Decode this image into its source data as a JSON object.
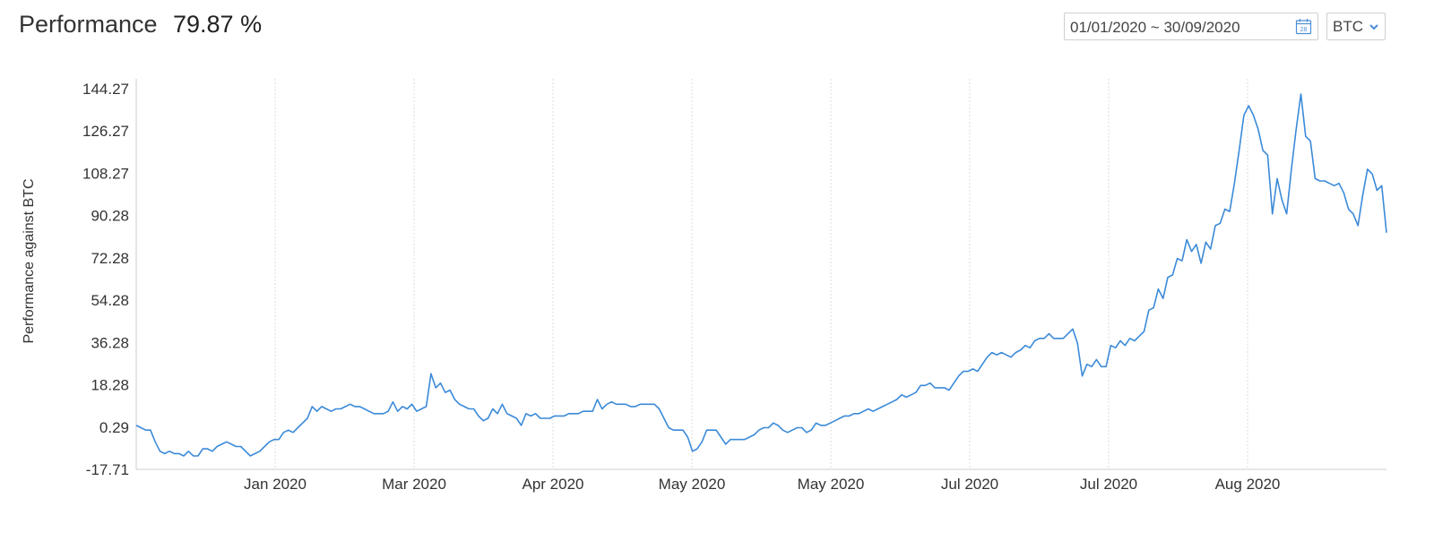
{
  "header": {
    "title": "Performance",
    "value": "79.87 %"
  },
  "controls": {
    "date_range": "01/01/2020 ~ 30/09/2020",
    "calendar_day": "28",
    "currency": "BTC"
  },
  "colors": {
    "line": "#3b8ad8",
    "grid": "#dddddd",
    "axis": "#cccccc",
    "icon": "#4a8fd6"
  },
  "chart_data": {
    "type": "line",
    "title": "",
    "xlabel": "",
    "ylabel": "Performance against BTC",
    "grid": "vertical dashed",
    "legend": "none",
    "y_ticks": [
      "-17.71",
      "0.29",
      "18.28",
      "36.28",
      "54.28",
      "72.28",
      "90.28",
      "108.27",
      "126.27",
      "144.27"
    ],
    "y_tick_values": [
      -17.71,
      0.29,
      18.28,
      36.28,
      54.28,
      72.28,
      90.28,
      108.27,
      126.27,
      144.27
    ],
    "ylim": [
      -17.71,
      144.27
    ],
    "x_ticks": [
      "Jan 2020",
      "Mar 2020",
      "Apr 2020",
      "May 2020",
      "May 2020",
      "Jul 2020",
      "Jul 2020",
      "Aug 2020"
    ],
    "x_tick_positions": [
      27,
      54,
      81,
      108,
      135,
      162,
      189,
      216
    ],
    "xlim": [
      0,
      243
    ],
    "series": [
      {
        "values": [
          1,
          0,
          -1,
          -1,
          -6,
          -10,
          -11,
          -10,
          -11,
          -11,
          -12,
          -10,
          -12,
          -12,
          -9,
          -9,
          -10,
          -8,
          -7,
          -6,
          -7,
          -8,
          -8,
          -10,
          -12,
          -11,
          -10,
          -8,
          -6,
          -5,
          -5,
          -2,
          -1,
          -2,
          0,
          2,
          4,
          9,
          7,
          9,
          8,
          7,
          8,
          8,
          9,
          10,
          9,
          9,
          8,
          7,
          6,
          6,
          6,
          7,
          11,
          7,
          9,
          8,
          10,
          7,
          8,
          9,
          23,
          17,
          19,
          15,
          16,
          12,
          10,
          9,
          8,
          8,
          5,
          3,
          4,
          8,
          6,
          10,
          6,
          5,
          4,
          1,
          6,
          5,
          6,
          4,
          4,
          4,
          5,
          5,
          5,
          6,
          6,
          6,
          7,
          7,
          7,
          12,
          8,
          10,
          11,
          10,
          10,
          10,
          9,
          9,
          10,
          10,
          10,
          10,
          8,
          4,
          0,
          -1,
          -1,
          -1,
          -4,
          -10,
          -9,
          -6,
          -1,
          -1,
          -1,
          -4,
          -7,
          -5,
          -5,
          -5,
          -5,
          -4,
          -3,
          -1,
          0,
          0,
          2,
          1,
          -1,
          -2,
          -1,
          0,
          0,
          -2,
          -1,
          2,
          1,
          1,
          2,
          3,
          4,
          5,
          5,
          6,
          6,
          7,
          8,
          7,
          8,
          9,
          10,
          11,
          12,
          14,
          13,
          14,
          15,
          18,
          18,
          19,
          17,
          17,
          17,
          16,
          19,
          22,
          24,
          24,
          25,
          24,
          27,
          30,
          32,
          31,
          32,
          31,
          30,
          32,
          33,
          35,
          34,
          37,
          38,
          38,
          40,
          38,
          38,
          38,
          40,
          42,
          36,
          22,
          27,
          26,
          29,
          26,
          26,
          35,
          34,
          37,
          35,
          38,
          37,
          39,
          41,
          50,
          51,
          59,
          55,
          64,
          65,
          72,
          71,
          80,
          75,
          78,
          70,
          79,
          76,
          86,
          87,
          93,
          92,
          104,
          118,
          133,
          137,
          133,
          127,
          118,
          116,
          91,
          106,
          97,
          91,
          110,
          127,
          142,
          124,
          122,
          106,
          105,
          105,
          104,
          103,
          104,
          100,
          93,
          91,
          86,
          99,
          110,
          108,
          101,
          103,
          83
        ]
      }
    ]
  }
}
